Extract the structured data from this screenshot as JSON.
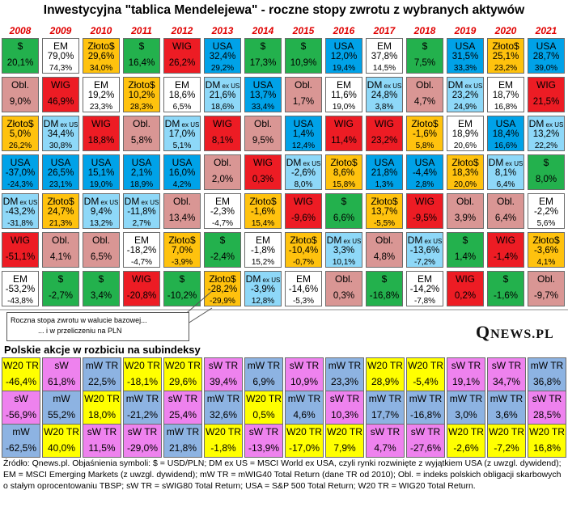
{
  "title": "Inwestycyjna \"tablica Mendelejewa\" - roczne stopy zwrotu z wybranych aktywów",
  "colors": {
    "usd": "#23b14d",
    "em": "#ffffff",
    "gold": "#ffc20e",
    "wig": "#ed1c24",
    "usa": "#00a2e8",
    "obl": "#d99694",
    "dm": "#8ed8f8",
    "mw": "#8db3e2",
    "sw": "#ee82ee",
    "w20": "#ffff00"
  },
  "chart_data": {
    "type": "table",
    "title": "Inwestycyjna \"tablica Mendelejewa\" - roczne stopy zwrotu z wybranych aktywów",
    "years": [
      "2008",
      "2009",
      "2010",
      "2011",
      "2012",
      "2013",
      "2014",
      "2015",
      "2016",
      "2017",
      "2018",
      "2019",
      "2020",
      "2021"
    ],
    "grid": [
      [
        [
          {
            "k": "usd",
            "n": "$",
            "s": "",
            "v1": "20,1%",
            "v2": ""
          },
          {
            "k": "em",
            "n": "EM",
            "s": "",
            "v1": "79,0%",
            "v2": "74,3%"
          },
          {
            "k": "gold",
            "n": "Złoto$",
            "s": "",
            "v1": "29,6%",
            "v2": "34,0%"
          },
          {
            "k": "usd",
            "n": "$",
            "s": "",
            "v1": "16,4%",
            "v2": ""
          },
          {
            "k": "wig",
            "n": "WIG",
            "s": "",
            "v1": "26,2%",
            "v2": ""
          },
          {
            "k": "usa",
            "n": "USA",
            "s": "",
            "v1": "32,4%",
            "v2": "29,2%"
          },
          {
            "k": "usd",
            "n": "$",
            "s": "",
            "v1": "17,3%",
            "v2": ""
          },
          {
            "k": "usd",
            "n": "$",
            "s": "",
            "v1": "10,9%",
            "v2": ""
          },
          {
            "k": "usa",
            "n": "USA",
            "s": "",
            "v1": "12,0%",
            "v2": "19,4%"
          },
          {
            "k": "em",
            "n": "EM",
            "s": "",
            "v1": "37,8%",
            "v2": "14,5%"
          },
          {
            "k": "usd",
            "n": "$",
            "s": "",
            "v1": "7,5%",
            "v2": ""
          },
          {
            "k": "usa",
            "n": "USA",
            "s": "",
            "v1": "31,5%",
            "v2": "33,3%"
          },
          {
            "k": "gold",
            "n": "Złoto$",
            "s": "",
            "v1": "25,1%",
            "v2": "23,2%"
          },
          {
            "k": "usa",
            "n": "USA",
            "s": "",
            "v1": "28,7%",
            "v2": "39,0%"
          }
        ]
      ],
      [
        [
          {
            "k": "obl",
            "n": "Obl.",
            "s": "",
            "v1": "9,0%",
            "v2": ""
          },
          {
            "k": "wig",
            "n": "WIG",
            "s": "",
            "v1": "46,9%",
            "v2": ""
          },
          {
            "k": "em",
            "n": "EM",
            "s": "",
            "v1": "19,2%",
            "v2": "23,3%"
          },
          {
            "k": "gold",
            "n": "Złoto$",
            "s": "",
            "v1": "10,2%",
            "v2": "28,3%"
          },
          {
            "k": "em",
            "n": "EM",
            "s": "",
            "v1": "18,6%",
            "v2": "6,5%"
          },
          {
            "k": "dm",
            "n": "DM",
            "s": "ex US",
            "v1": "21,6%",
            "v2": "18,6%"
          },
          {
            "k": "usa",
            "n": "USA",
            "s": "",
            "v1": "13,7%",
            "v2": "33,4%"
          },
          {
            "k": "obl",
            "n": "Obl.",
            "s": "",
            "v1": "1,7%",
            "v2": ""
          },
          {
            "k": "em",
            "n": "EM",
            "s": "",
            "v1": "11,6%",
            "v2": "19,0%"
          },
          {
            "k": "dm",
            "n": "DM",
            "s": "ex US",
            "v1": "24,8%",
            "v2": "3,8%"
          },
          {
            "k": "obl",
            "n": "Obl.",
            "s": "",
            "v1": "4,7%",
            "v2": ""
          },
          {
            "k": "dm",
            "n": "DM",
            "s": "ex US",
            "v1": "23,2%",
            "v2": "24,9%"
          },
          {
            "k": "em",
            "n": "EM",
            "s": "",
            "v1": "18,7%",
            "v2": "16,8%"
          },
          {
            "k": "wig",
            "n": "WIG",
            "s": "",
            "v1": "21,5%",
            "v2": ""
          }
        ]
      ],
      [
        [
          {
            "k": "gold",
            "n": "Złoto$",
            "s": "",
            "v1": "5,0%",
            "v2": "26,2%"
          },
          {
            "k": "dm",
            "n": "DM",
            "s": "ex US",
            "v1": "34,4%",
            "v2": "30,8%"
          },
          {
            "k": "wig",
            "n": "WIG",
            "s": "",
            "v1": "18,8%",
            "v2": ""
          },
          {
            "k": "obl",
            "n": "Obl.",
            "s": "",
            "v1": "5,8%",
            "v2": ""
          },
          {
            "k": "dm",
            "n": "DM",
            "s": "ex US",
            "v1": "17,0%",
            "v2": "5,1%"
          },
          {
            "k": "wig",
            "n": "WIG",
            "s": "",
            "v1": "8,1%",
            "v2": ""
          },
          {
            "k": "obl",
            "n": "Obl.",
            "s": "",
            "v1": "9,5%",
            "v2": ""
          },
          {
            "k": "usa",
            "n": "USA",
            "s": "",
            "v1": "1,4%",
            "v2": "12,4%"
          },
          {
            "k": "wig",
            "n": "WIG",
            "s": "",
            "v1": "11,4%",
            "v2": ""
          },
          {
            "k": "wig",
            "n": "WIG",
            "s": "",
            "v1": "23,2%",
            "v2": ""
          },
          {
            "k": "gold",
            "n": "Złoto$",
            "s": "",
            "v1": "-1,6%",
            "v2": "5,8%"
          },
          {
            "k": "em",
            "n": "EM",
            "s": "",
            "v1": "18,9%",
            "v2": "20,6%"
          },
          {
            "k": "usa",
            "n": "USA",
            "s": "",
            "v1": "18,4%",
            "v2": "16,6%"
          },
          {
            "k": "dm",
            "n": "DM",
            "s": "ex US",
            "v1": "13,2%",
            "v2": "22,2%"
          }
        ]
      ],
      [
        [
          {
            "k": "usa",
            "n": "USA",
            "s": "",
            "v1": "-37,0%",
            "v2": "-24,3%"
          },
          {
            "k": "usa",
            "n": "USA",
            "s": "",
            "v1": "26,5%",
            "v2": "23,1%"
          },
          {
            "k": "usa",
            "n": "USA",
            "s": "",
            "v1": "15,1%",
            "v2": "19,0%"
          },
          {
            "k": "usa",
            "n": "USA",
            "s": "",
            "v1": "2,1%",
            "v2": "18,9%"
          },
          {
            "k": "usa",
            "n": "USA",
            "s": "",
            "v1": "16,0%",
            "v2": "4,2%"
          },
          {
            "k": "obl",
            "n": "Obl.",
            "s": "",
            "v1": "2,0%",
            "v2": ""
          },
          {
            "k": "wig",
            "n": "WIG",
            "s": "",
            "v1": "0,3%",
            "v2": ""
          },
          {
            "k": "dm",
            "n": "DM",
            "s": "ex US",
            "v1": "-2,6%",
            "v2": "8,0%"
          },
          {
            "k": "gold",
            "n": "Złoto$",
            "s": "",
            "v1": "8,6%",
            "v2": "15,8%"
          },
          {
            "k": "usa",
            "n": "USA",
            "s": "",
            "v1": "21,8%",
            "v2": "1,3%"
          },
          {
            "k": "usa",
            "n": "USA",
            "s": "",
            "v1": "-4,4%",
            "v2": "2,8%"
          },
          {
            "k": "gold",
            "n": "Złoto$",
            "s": "",
            "v1": "18,3%",
            "v2": "20,0%"
          },
          {
            "k": "dm",
            "n": "DM",
            "s": "ex US",
            "v1": "8,1%",
            "v2": "6,4%"
          },
          {
            "k": "usd",
            "n": "$",
            "s": "",
            "v1": "8,0%",
            "v2": ""
          }
        ]
      ],
      [
        [
          {
            "k": "dm",
            "n": "DM",
            "s": "ex US",
            "v1": "-43,2%",
            "v2": "-31,8%"
          },
          {
            "k": "gold",
            "n": "Złoto$",
            "s": "",
            "v1": "24,7%",
            "v2": "21,3%"
          },
          {
            "k": "dm",
            "n": "DM",
            "s": "ex US",
            "v1": "9,4%",
            "v2": "13,2%"
          },
          {
            "k": "dm",
            "n": "DM",
            "s": "ex US",
            "v1": "-11,8%",
            "v2": "2,7%"
          },
          {
            "k": "obl",
            "n": "Obl.",
            "s": "",
            "v1": "13,4%",
            "v2": ""
          },
          {
            "k": "em",
            "n": "EM",
            "s": "",
            "v1": "-2,3%",
            "v2": "-4,7%"
          },
          {
            "k": "gold",
            "n": "Złoto$",
            "s": "",
            "v1": "-1,6%",
            "v2": "15,4%"
          },
          {
            "k": "wig",
            "n": "WIG",
            "s": "",
            "v1": "-9,6%",
            "v2": ""
          },
          {
            "k": "usd",
            "n": "$",
            "s": "",
            "v1": "6,6%",
            "v2": ""
          },
          {
            "k": "gold",
            "n": "Złoto$",
            "s": "",
            "v1": "13,7%",
            "v2": "-5,5%"
          },
          {
            "k": "wig",
            "n": "WIG",
            "s": "",
            "v1": "-9,5%",
            "v2": ""
          },
          {
            "k": "obl",
            "n": "Obl.",
            "s": "",
            "v1": "3,9%",
            "v2": ""
          },
          {
            "k": "obl",
            "n": "Obl.",
            "s": "",
            "v1": "6,4%",
            "v2": ""
          },
          {
            "k": "em",
            "n": "EM",
            "s": "",
            "v1": "-2,2%",
            "v2": "5,6%"
          }
        ]
      ],
      [
        [
          {
            "k": "wig",
            "n": "WIG",
            "s": "",
            "v1": "-51,1%",
            "v2": ""
          },
          {
            "k": "obl",
            "n": "Obl.",
            "s": "",
            "v1": "4,1%",
            "v2": ""
          },
          {
            "k": "obl",
            "n": "Obl.",
            "s": "",
            "v1": "6,5%",
            "v2": ""
          },
          {
            "k": "em",
            "n": "EM",
            "s": "",
            "v1": "-18,2%",
            "v2": "-4,7%"
          },
          {
            "k": "gold",
            "n": "Złoto$",
            "s": "",
            "v1": "7,0%",
            "v2": "-3,9%"
          },
          {
            "k": "usd",
            "n": "$",
            "s": "",
            "v1": "-2,4%",
            "v2": ""
          },
          {
            "k": "em",
            "n": "EM",
            "s": "",
            "v1": "-1,8%",
            "v2": "15,2%"
          },
          {
            "k": "gold",
            "n": "Złoto$",
            "s": "",
            "v1": "-10,4%",
            "v2": "-0,7%"
          },
          {
            "k": "dm",
            "n": "DM",
            "s": "ex US",
            "v1": "3,3%",
            "v2": "10,1%"
          },
          {
            "k": "obl",
            "n": "Obl.",
            "s": "",
            "v1": "4,8%",
            "v2": ""
          },
          {
            "k": "dm",
            "n": "DM",
            "s": "ex US",
            "v1": "-13,6%",
            "v2": "-7,2%"
          },
          {
            "k": "usd",
            "n": "$",
            "s": "",
            "v1": "1,4%",
            "v2": ""
          },
          {
            "k": "wig",
            "n": "WIG",
            "s": "",
            "v1": "-1,4%",
            "v2": ""
          },
          {
            "k": "gold",
            "n": "Złoto$",
            "s": "",
            "v1": "-3,6%",
            "v2": "4,1%"
          }
        ]
      ],
      [
        [
          {
            "k": "em",
            "n": "EM",
            "s": "",
            "v1": "-53,2%",
            "v2": "-43,8%"
          },
          {
            "k": "usd",
            "n": "$",
            "s": "",
            "v1": "-2,7%",
            "v2": ""
          },
          {
            "k": "usd",
            "n": "$",
            "s": "",
            "v1": "3,4%",
            "v2": ""
          },
          {
            "k": "wig",
            "n": "WIG",
            "s": "",
            "v1": "-20,8%",
            "v2": ""
          },
          {
            "k": "usd",
            "n": "$",
            "s": "",
            "v1": "-10,2%",
            "v2": ""
          },
          {
            "k": "gold",
            "n": "Złoto$",
            "s": "",
            "v1": "-28,2%",
            "v2": "-29,9%"
          },
          {
            "k": "dm",
            "n": "DM",
            "s": "ex US",
            "v1": "-3,9%",
            "v2": "12,8%"
          },
          {
            "k": "em",
            "n": "EM",
            "s": "",
            "v1": "-14,6%",
            "v2": "-5,3%"
          },
          {
            "k": "obl",
            "n": "Obl.",
            "s": "",
            "v1": "0,3%",
            "v2": ""
          },
          {
            "k": "usd",
            "n": "$",
            "s": "",
            "v1": "-16,8%",
            "v2": ""
          },
          {
            "k": "em",
            "n": "EM",
            "s": "",
            "v1": "-14,2%",
            "v2": "-7,8%"
          },
          {
            "k": "wig",
            "n": "WIG",
            "s": "",
            "v1": "0,2%",
            "v2": ""
          },
          {
            "k": "usd",
            "n": "$",
            "s": "",
            "v1": "-1,6%",
            "v2": ""
          },
          {
            "k": "obl",
            "n": "Obl.",
            "s": "",
            "v1": "-9,7%",
            "v2": ""
          }
        ]
      ]
    ],
    "polish": [
      [
        {
          "k": "w20",
          "n": "W20 TR",
          "v1": "-46,4%"
        },
        {
          "k": "sw",
          "n": "sW",
          "v1": "61,8%"
        },
        {
          "k": "mw",
          "n": "mW TR",
          "v1": "22,5%"
        },
        {
          "k": "w20",
          "n": "W20 TR",
          "v1": "-18,1%"
        },
        {
          "k": "w20",
          "n": "W20 TR",
          "v1": "29,6%"
        },
        {
          "k": "sw",
          "n": "sW TR",
          "v1": "39,4%"
        },
        {
          "k": "mw",
          "n": "mW TR",
          "v1": "6,9%"
        },
        {
          "k": "sw",
          "n": "sW TR",
          "v1": "10,9%"
        },
        {
          "k": "mw",
          "n": "mW TR",
          "v1": "23,3%"
        },
        {
          "k": "w20",
          "n": "W20 TR",
          "v1": "28,9%"
        },
        {
          "k": "w20",
          "n": "W20 TR",
          "v1": "-5,4%"
        },
        {
          "k": "sw",
          "n": "sW TR",
          "v1": "19,1%"
        },
        {
          "k": "sw",
          "n": "sW TR",
          "v1": "34,7%"
        },
        {
          "k": "mw",
          "n": "mW TR",
          "v1": "36,8%"
        }
      ],
      [
        {
          "k": "sw",
          "n": "sW",
          "v1": "-56,9%"
        },
        {
          "k": "mw",
          "n": "mW",
          "v1": "55,2%"
        },
        {
          "k": "w20",
          "n": "W20 TR",
          "v1": "18,0%"
        },
        {
          "k": "mw",
          "n": "mW TR",
          "v1": "-21,2%"
        },
        {
          "k": "sw",
          "n": "sW TR",
          "v1": "25,4%"
        },
        {
          "k": "mw",
          "n": "mW TR",
          "v1": "32,6%"
        },
        {
          "k": "w20",
          "n": "W20 TR",
          "v1": "0,5%"
        },
        {
          "k": "mw",
          "n": "mW TR",
          "v1": "4,6%"
        },
        {
          "k": "sw",
          "n": "sW TR",
          "v1": "10,3%"
        },
        {
          "k": "mw",
          "n": "mW TR",
          "v1": "17,7%"
        },
        {
          "k": "mw",
          "n": "mW TR",
          "v1": "-16,8%"
        },
        {
          "k": "mw",
          "n": "mW TR",
          "v1": "3,0%"
        },
        {
          "k": "mw",
          "n": "mW TR",
          "v1": "3,6%"
        },
        {
          "k": "sw",
          "n": "sW TR",
          "v1": "28,5%"
        }
      ],
      [
        {
          "k": "mw",
          "n": "mW",
          "v1": "-62,5%"
        },
        {
          "k": "w20",
          "n": "W20 TR",
          "v1": "40,0%"
        },
        {
          "k": "sw",
          "n": "sW TR",
          "v1": "11,5%"
        },
        {
          "k": "sw",
          "n": "sW TR",
          "v1": "-29,0%"
        },
        {
          "k": "mw",
          "n": "mW TR",
          "v1": "21,8%"
        },
        {
          "k": "w20",
          "n": "W20 TR",
          "v1": "-1,8%"
        },
        {
          "k": "sw",
          "n": "sW TR",
          "v1": "-13,9%"
        },
        {
          "k": "w20",
          "n": "W20 TR",
          "v1": "-17,0%"
        },
        {
          "k": "w20",
          "n": "W20 TR",
          "v1": "7,9%"
        },
        {
          "k": "sw",
          "n": "sW TR",
          "v1": "4,7%"
        },
        {
          "k": "sw",
          "n": "sW TR",
          "v1": "-27,6%"
        },
        {
          "k": "w20",
          "n": "W20 TR",
          "v1": "-2,6%"
        },
        {
          "k": "w20",
          "n": "W20 TR",
          "v1": "-7,2%"
        },
        {
          "k": "w20",
          "n": "W20 TR",
          "v1": "16,8%"
        }
      ]
    ]
  },
  "annotation": {
    "line1": "Roczna stopa zwrotu w walucie  bazowej...",
    "line2": "... i w przeliczeniu na PLN"
  },
  "logo": {
    "first": "Q",
    "rest": "NEWS.PL"
  },
  "subtitle": "Polskie akcje w rozbiciu na subindeksy",
  "footer": "Źródło: Qnews.pl. Objaśnienia symboli: $ = USD/PLN; DM ex US = MSCI World ex USA, czyli rynki rozwinięte z wyjątkiem USA (z uwzgl. dywidend); EM = MSCI Emerging Markets (z uwzgl. dywidend); mW TR = mWIG40 Total Return (dane TR od 2010); Obl. = indeks polskich obligacji skarbowych o stałym oprocentowaniu TBSP; sW TR = sWIG80 Total Return; USA = S&P 500 Total Return; W20 TR = WIG20 Total Return."
}
